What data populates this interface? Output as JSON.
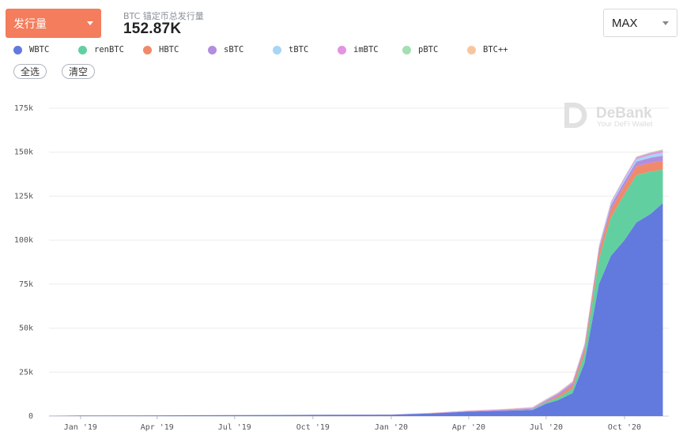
{
  "header": {
    "metric_dropdown_label": "发行量",
    "stat_label": "BTC 锚定币总发行量",
    "stat_value": "152.87K",
    "range_select_value": "MAX"
  },
  "buttons": {
    "select_all": "全选",
    "clear": "清空"
  },
  "watermark": {
    "brand": "DeBank",
    "tagline": "Your DeFi Wallet"
  },
  "chart_data": {
    "type": "area",
    "stacked": true,
    "title": "",
    "xlabel": "",
    "ylabel": "",
    "ylim": [
      0,
      175000
    ],
    "grid": true,
    "legend_position": "top-left",
    "y_ticks": [
      0,
      25000,
      50000,
      75000,
      100000,
      125000,
      150000,
      175000
    ],
    "y_tick_labels": [
      "0",
      "25k",
      "50k",
      "75k",
      "100k",
      "125k",
      "150k",
      "175k"
    ],
    "x_tick_labels": [
      "Jan '19",
      "Apr '19",
      "Jul '19",
      "Oct '19",
      "Jan '20",
      "Apr '20",
      "Jul '20",
      "Oct '20"
    ],
    "x_tick_dates": [
      "2019-01-01",
      "2019-04-01",
      "2019-07-01",
      "2019-10-01",
      "2020-01-01",
      "2020-04-01",
      "2020-07-01",
      "2020-10-01"
    ],
    "x": [
      "2018-11-25",
      "2019-01-01",
      "2019-04-01",
      "2019-07-01",
      "2019-10-01",
      "2020-01-01",
      "2020-02-15",
      "2020-04-01",
      "2020-05-15",
      "2020-06-15",
      "2020-07-01",
      "2020-07-15",
      "2020-08-01",
      "2020-08-15",
      "2020-09-01",
      "2020-09-15",
      "2020-10-01",
      "2020-10-15",
      "2020-11-01",
      "2020-11-15"
    ],
    "series": [
      {
        "name": "WBTC",
        "color": "#6279de",
        "values": [
          100,
          300,
          400,
          600,
          700,
          800,
          1500,
          2500,
          3000,
          3500,
          7000,
          9000,
          13000,
          30000,
          75000,
          91000,
          100000,
          110000,
          115000,
          121000
        ]
      },
      {
        "name": "renBTC",
        "color": "#62cfa1",
        "values": [
          0,
          0,
          0,
          0,
          0,
          0,
          0,
          0,
          50,
          200,
          800,
          1500,
          2500,
          5000,
          14000,
          22000,
          26000,
          27000,
          24000,
          19000
        ]
      },
      {
        "name": "HBTC",
        "color": "#f08a6a",
        "values": [
          0,
          0,
          0,
          0,
          0,
          0,
          0,
          0,
          0,
          0,
          300,
          1000,
          2000,
          3000,
          4000,
          4500,
          5000,
          5000,
          5000,
          5000
        ]
      },
      {
        "name": "sBTC",
        "color": "#b18ee0",
        "values": [
          0,
          0,
          0,
          0,
          0,
          0,
          50,
          200,
          400,
          600,
          800,
          1000,
          1200,
          1500,
          2000,
          2200,
          2400,
          2600,
          2800,
          3000
        ]
      },
      {
        "name": "tBTC",
        "color": "#a6d5f6",
        "values": [
          0,
          0,
          0,
          0,
          0,
          0,
          0,
          0,
          0,
          50,
          100,
          200,
          300,
          500,
          800,
          1000,
          1200,
          1400,
          1600,
          1800
        ]
      },
      {
        "name": "imBTC",
        "color": "#e394e1",
        "values": [
          0,
          0,
          0,
          0,
          0,
          50,
          150,
          300,
          400,
          400,
          400,
          400,
          500,
          600,
          700,
          800,
          900,
          1000,
          1100,
          1200
        ]
      },
      {
        "name": "pBTC",
        "color": "#a3dfb2",
        "values": [
          0,
          0,
          0,
          0,
          0,
          0,
          0,
          0,
          100,
          200,
          200,
          200,
          200,
          250,
          300,
          300,
          300,
          350,
          350,
          400
        ]
      },
      {
        "name": "BTC++",
        "color": "#f7c6a0",
        "values": [
          0,
          0,
          0,
          0,
          50,
          100,
          150,
          200,
          200,
          200,
          200,
          200,
          200,
          200,
          200,
          200,
          200,
          200,
          200,
          200
        ]
      }
    ]
  }
}
